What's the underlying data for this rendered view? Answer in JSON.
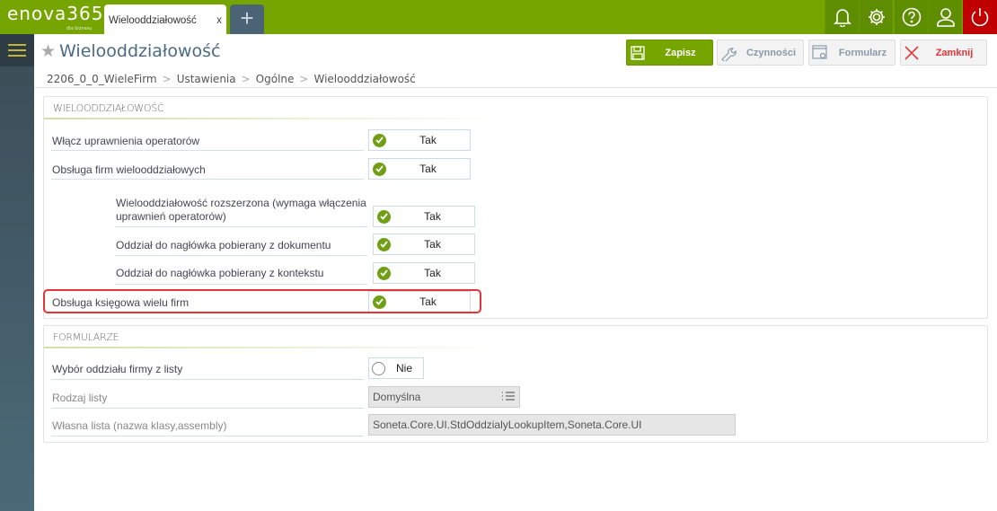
{
  "app": {
    "logo": "enova365",
    "logo_sub": "dla biznesu"
  },
  "tabs": [
    {
      "label": "Wielooddziałowość",
      "close": "x"
    }
  ],
  "new_tab": "+",
  "top_icons": [
    "bell-icon",
    "gear-icon",
    "help-icon",
    "user-icon",
    "power-icon"
  ],
  "colors": {
    "brand": "#76a500",
    "power": "#c00000",
    "highlight": "#e5343a"
  },
  "page": {
    "title": "Wielooddziałowość"
  },
  "toolbar": {
    "save": "Zapisz",
    "actions": "Czynności",
    "form": "Formularz",
    "close": "Zamknij"
  },
  "breadcrumb": [
    "2206_0_0_WieleFirm",
    "Ustawienia",
    "Ogólne",
    "Wielooddziałowość"
  ],
  "section1": {
    "header": "WIELOODDZIAŁOWOŚĆ",
    "rows": [
      {
        "label": "Włącz uprawnienia operatorów",
        "value": "Tak"
      },
      {
        "label": "Obsługa firm wielooddziałowych",
        "value": "Tak"
      },
      {
        "label": "Wielooddziałowość rozszerzona (wymaga włączenia uprawnień operatorów)",
        "value": "Tak"
      },
      {
        "label": "Oddział do nagłówka pobierany z dokumentu",
        "value": "Tak"
      },
      {
        "label": "Oddział do nagłówka pobierany z kontekstu",
        "value": "Tak"
      },
      {
        "label": "Obsługa księgowa wielu firm",
        "value": "Tak"
      }
    ]
  },
  "section2": {
    "header": "FORMULARZE",
    "rows": [
      {
        "label": "Wybór oddziału firmy z listy",
        "value": "Nie"
      },
      {
        "label": "Rodzaj listy",
        "value": "Domyślna"
      },
      {
        "label": "Własna lista (nazwa klasy,assembly)",
        "value": "Soneta.Core.UI.StdOddzialyLookupItem,Soneta.Core.UI"
      }
    ]
  }
}
